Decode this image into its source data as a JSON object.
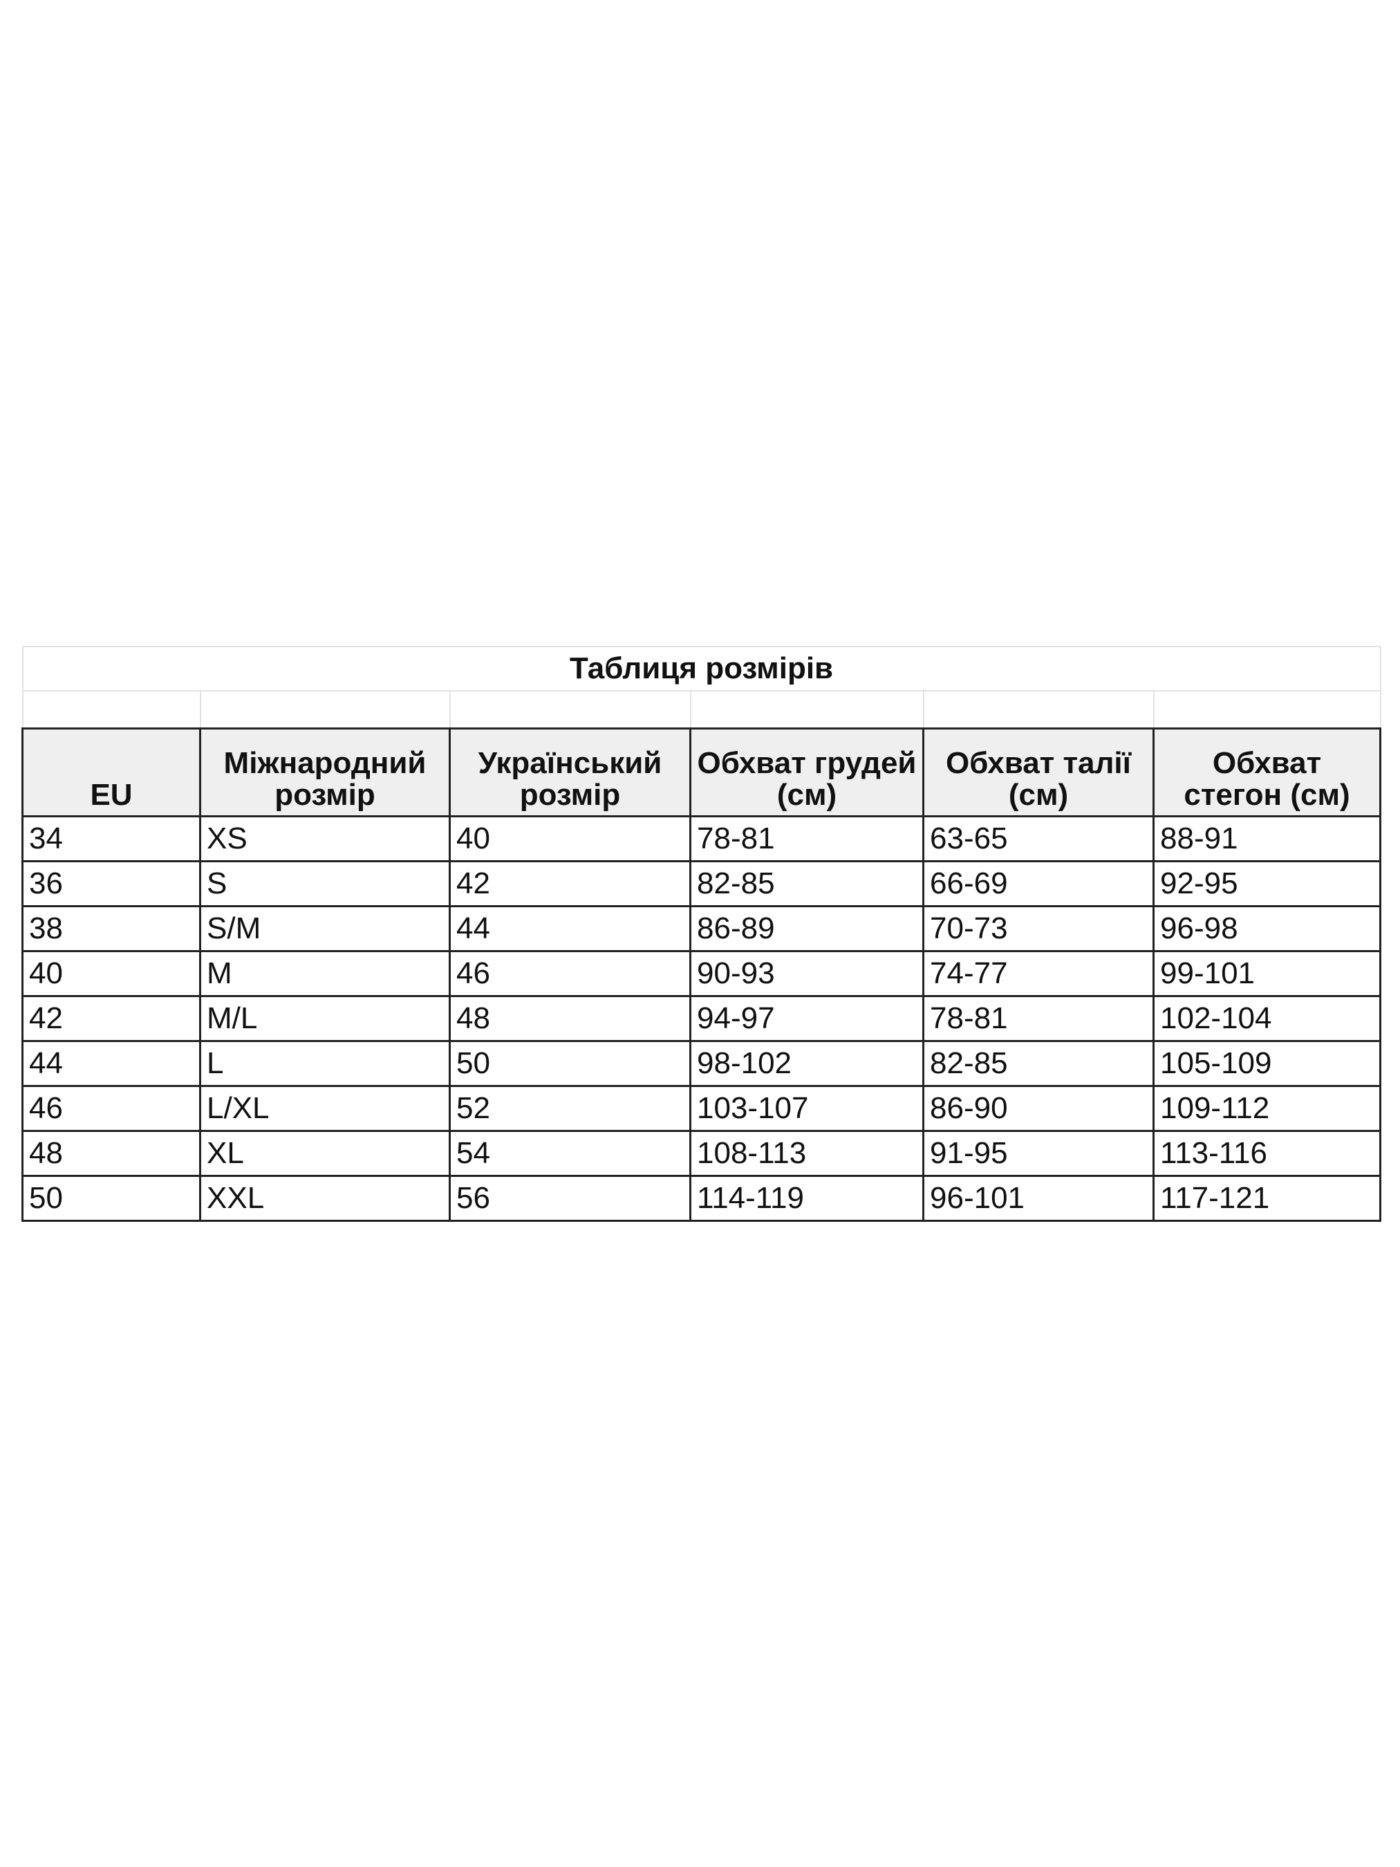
{
  "title": "Таблиця розмірів",
  "headers": [
    "EU",
    "Міжнародний розмір",
    "Український розмір",
    "Обхват грудей (см)",
    "Обхват талії (см)",
    "Обхват стегон (см)"
  ],
  "rows": [
    [
      "34",
      "XS",
      "40",
      "78-81",
      "63-65",
      "88-91"
    ],
    [
      "36",
      "S",
      "42",
      "82-85",
      "66-69",
      "92-95"
    ],
    [
      "38",
      "S/M",
      "44",
      "86-89",
      "70-73",
      "96-98"
    ],
    [
      "40",
      "M",
      "46",
      "90-93",
      "74-77",
      "99-101"
    ],
    [
      "42",
      "M/L",
      "48",
      "94-97",
      "78-81",
      "102-104"
    ],
    [
      "44",
      "L",
      "50",
      "98-102",
      "82-85",
      "105-109"
    ],
    [
      "46",
      "L/XL",
      "52",
      "103-107",
      "86-90",
      "109-112"
    ],
    [
      "48",
      "XL",
      "54",
      "108-113",
      "91-95",
      "113-116"
    ],
    [
      "50",
      "XXL",
      "56",
      "114-119",
      "96-101",
      "117-121"
    ]
  ]
}
